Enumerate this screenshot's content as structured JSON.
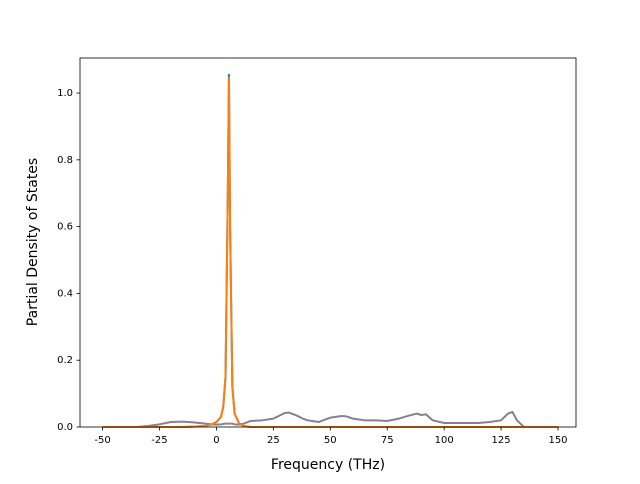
{
  "chart_data": {
    "type": "line",
    "xlabel": "Frequency (THz)",
    "ylabel": "Partial Density of States",
    "x": [
      -50,
      -45,
      -40,
      -35,
      -30,
      -25,
      -20,
      -15,
      -10,
      -5,
      -2,
      0,
      2,
      3,
      4,
      5,
      5.5,
      6,
      7,
      8,
      10,
      12,
      15,
      20,
      25,
      30,
      32,
      35,
      38,
      40,
      42,
      45,
      50,
      55,
      57,
      60,
      65,
      70,
      75,
      80,
      85,
      88,
      90,
      92,
      95,
      100,
      105,
      110,
      115,
      120,
      125,
      128,
      130,
      132,
      135,
      140,
      145,
      150
    ],
    "series": [
      {
        "color": "#1f77b4",
        "values": [
          0,
          0,
          0,
          0,
          0,
          0,
          0,
          0,
          0.001,
          0.003,
          0.008,
          0.015,
          0.03,
          0.06,
          0.15,
          0.7,
          1.055,
          0.6,
          0.12,
          0.04,
          0.01,
          0.003,
          0,
          0,
          0,
          0,
          0,
          0,
          0,
          0,
          0,
          0,
          0,
          0,
          0,
          0,
          0,
          0,
          0,
          0,
          0,
          0,
          0,
          0,
          0,
          0,
          0,
          0,
          0,
          0,
          0,
          0,
          0,
          0,
          0,
          0,
          0,
          0
        ]
      },
      {
        "color": "#8a7f8c",
        "values": [
          0,
          0,
          0,
          0,
          0.003,
          0.008,
          0.015,
          0.016,
          0.014,
          0.01,
          0.008,
          0.007,
          0.008,
          0.009,
          0.01,
          0.01,
          0.01,
          0.01,
          0.01,
          0.008,
          0.007,
          0.01,
          0.018,
          0.02,
          0.025,
          0.042,
          0.043,
          0.035,
          0.025,
          0.02,
          0.018,
          0.015,
          0.028,
          0.033,
          0.032,
          0.025,
          0.02,
          0.02,
          0.018,
          0.025,
          0.035,
          0.04,
          0.036,
          0.038,
          0.02,
          0.012,
          0.012,
          0.012,
          0.012,
          0.015,
          0.02,
          0.04,
          0.045,
          0.02,
          0,
          0,
          0,
          0
        ]
      },
      {
        "color": "#ff7f0e",
        "values": [
          0,
          0,
          0,
          0,
          0,
          0,
          0,
          0,
          0.001,
          0.003,
          0.008,
          0.015,
          0.03,
          0.06,
          0.15,
          0.7,
          1.045,
          0.6,
          0.12,
          0.04,
          0.01,
          0.003,
          0,
          0,
          0,
          0,
          0,
          0,
          0,
          0,
          0,
          0,
          0,
          0,
          0,
          0,
          0,
          0,
          0,
          0,
          0,
          0,
          0,
          0,
          0,
          0,
          0,
          0,
          0,
          0,
          0,
          0,
          0,
          0,
          0,
          0,
          0,
          0
        ]
      }
    ],
    "xlim": [
      -59.9,
      157.9
    ],
    "xticks": [
      -50,
      -25,
      0,
      25,
      50,
      75,
      100,
      125,
      150
    ],
    "ylim": [
      0,
      1.105
    ],
    "yticks": [
      {
        "value": 0,
        "label": "0.0"
      },
      {
        "value": 0.2,
        "label": "0.2"
      },
      {
        "value": 0.4,
        "label": "0.4"
      },
      {
        "value": 0.6,
        "label": "0.6"
      },
      {
        "value": 0.8,
        "label": "0.8"
      },
      {
        "value": 1.0,
        "label": "1.0"
      }
    ]
  }
}
